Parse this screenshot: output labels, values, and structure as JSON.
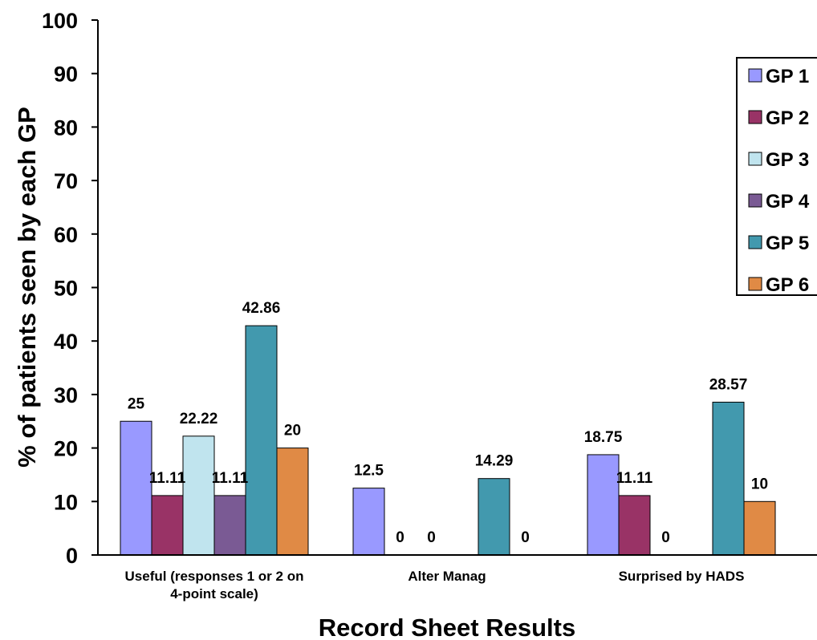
{
  "chart_data": {
    "type": "bar",
    "title": "",
    "xlabel": "Record Sheet Results",
    "ylabel": "% of patients seen by each GP",
    "ylim": [
      0,
      100
    ],
    "yticks": [
      0,
      10,
      20,
      30,
      40,
      50,
      60,
      70,
      80,
      90,
      100
    ],
    "grid": false,
    "legend_position": "top-right",
    "categories": [
      [
        "Useful (responses 1 or 2 on",
        "4-point scale)"
      ],
      [
        "Alter Manag"
      ],
      [
        "Surprised by HADS"
      ]
    ],
    "series": [
      {
        "name": "GP 1",
        "color": "#9999ff",
        "values": [
          25,
          12.5,
          18.75
        ],
        "labels": [
          "25",
          "12.5",
          "18.75"
        ]
      },
      {
        "name": "GP 2",
        "color": "#993366",
        "values": [
          11.11,
          0,
          11.11
        ],
        "labels": [
          "11.11",
          "0",
          "11.11"
        ]
      },
      {
        "name": "GP 3",
        "color": "#c0e4ee",
        "values": [
          22.22,
          0,
          0
        ],
        "labels": [
          "22.22",
          "0",
          "0"
        ]
      },
      {
        "name": "GP 4",
        "color": "#7a5a94",
        "values": [
          11.11,
          null,
          null
        ],
        "labels": [
          "11.11",
          "",
          ""
        ]
      },
      {
        "name": "GP 5",
        "color": "#4299ae",
        "values": [
          42.86,
          14.29,
          28.57
        ],
        "labels": [
          "42.86",
          "14.29",
          "28.57"
        ]
      },
      {
        "name": "GP 6",
        "color": "#e08a45",
        "values": [
          20,
          0,
          10
        ],
        "labels": [
          "20",
          "0",
          "10"
        ]
      }
    ]
  }
}
